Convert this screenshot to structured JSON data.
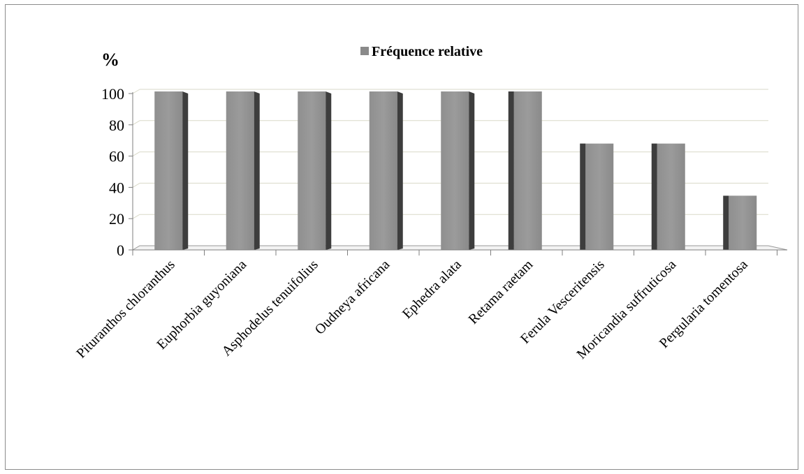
{
  "chart_data": {
    "type": "bar",
    "ylabel": "%",
    "legend": {
      "label": "Fréquence relative",
      "position": "top-center",
      "color": "#8a8a8a"
    },
    "categories": [
      "Pituranthos chloranthus",
      "Euphorbia guyoniana",
      "Asphodelus tenuifolius",
      "Oudneya africana",
      "Ephedra alata",
      "Retama raetam",
      "Ferula Vesceritensis",
      "Moricandia suffruticosa",
      "Pergularia tomentosa"
    ],
    "series": [
      {
        "name": "Fréquence relative",
        "values": [
          100,
          100,
          100,
          100,
          100,
          100,
          66.67,
          66.67,
          33.33
        ]
      }
    ],
    "ylim": [
      0,
      100
    ],
    "yticks": [
      "0",
      "20",
      "40",
      "60",
      "80",
      "100"
    ],
    "grid": true,
    "style": "3d-column"
  }
}
